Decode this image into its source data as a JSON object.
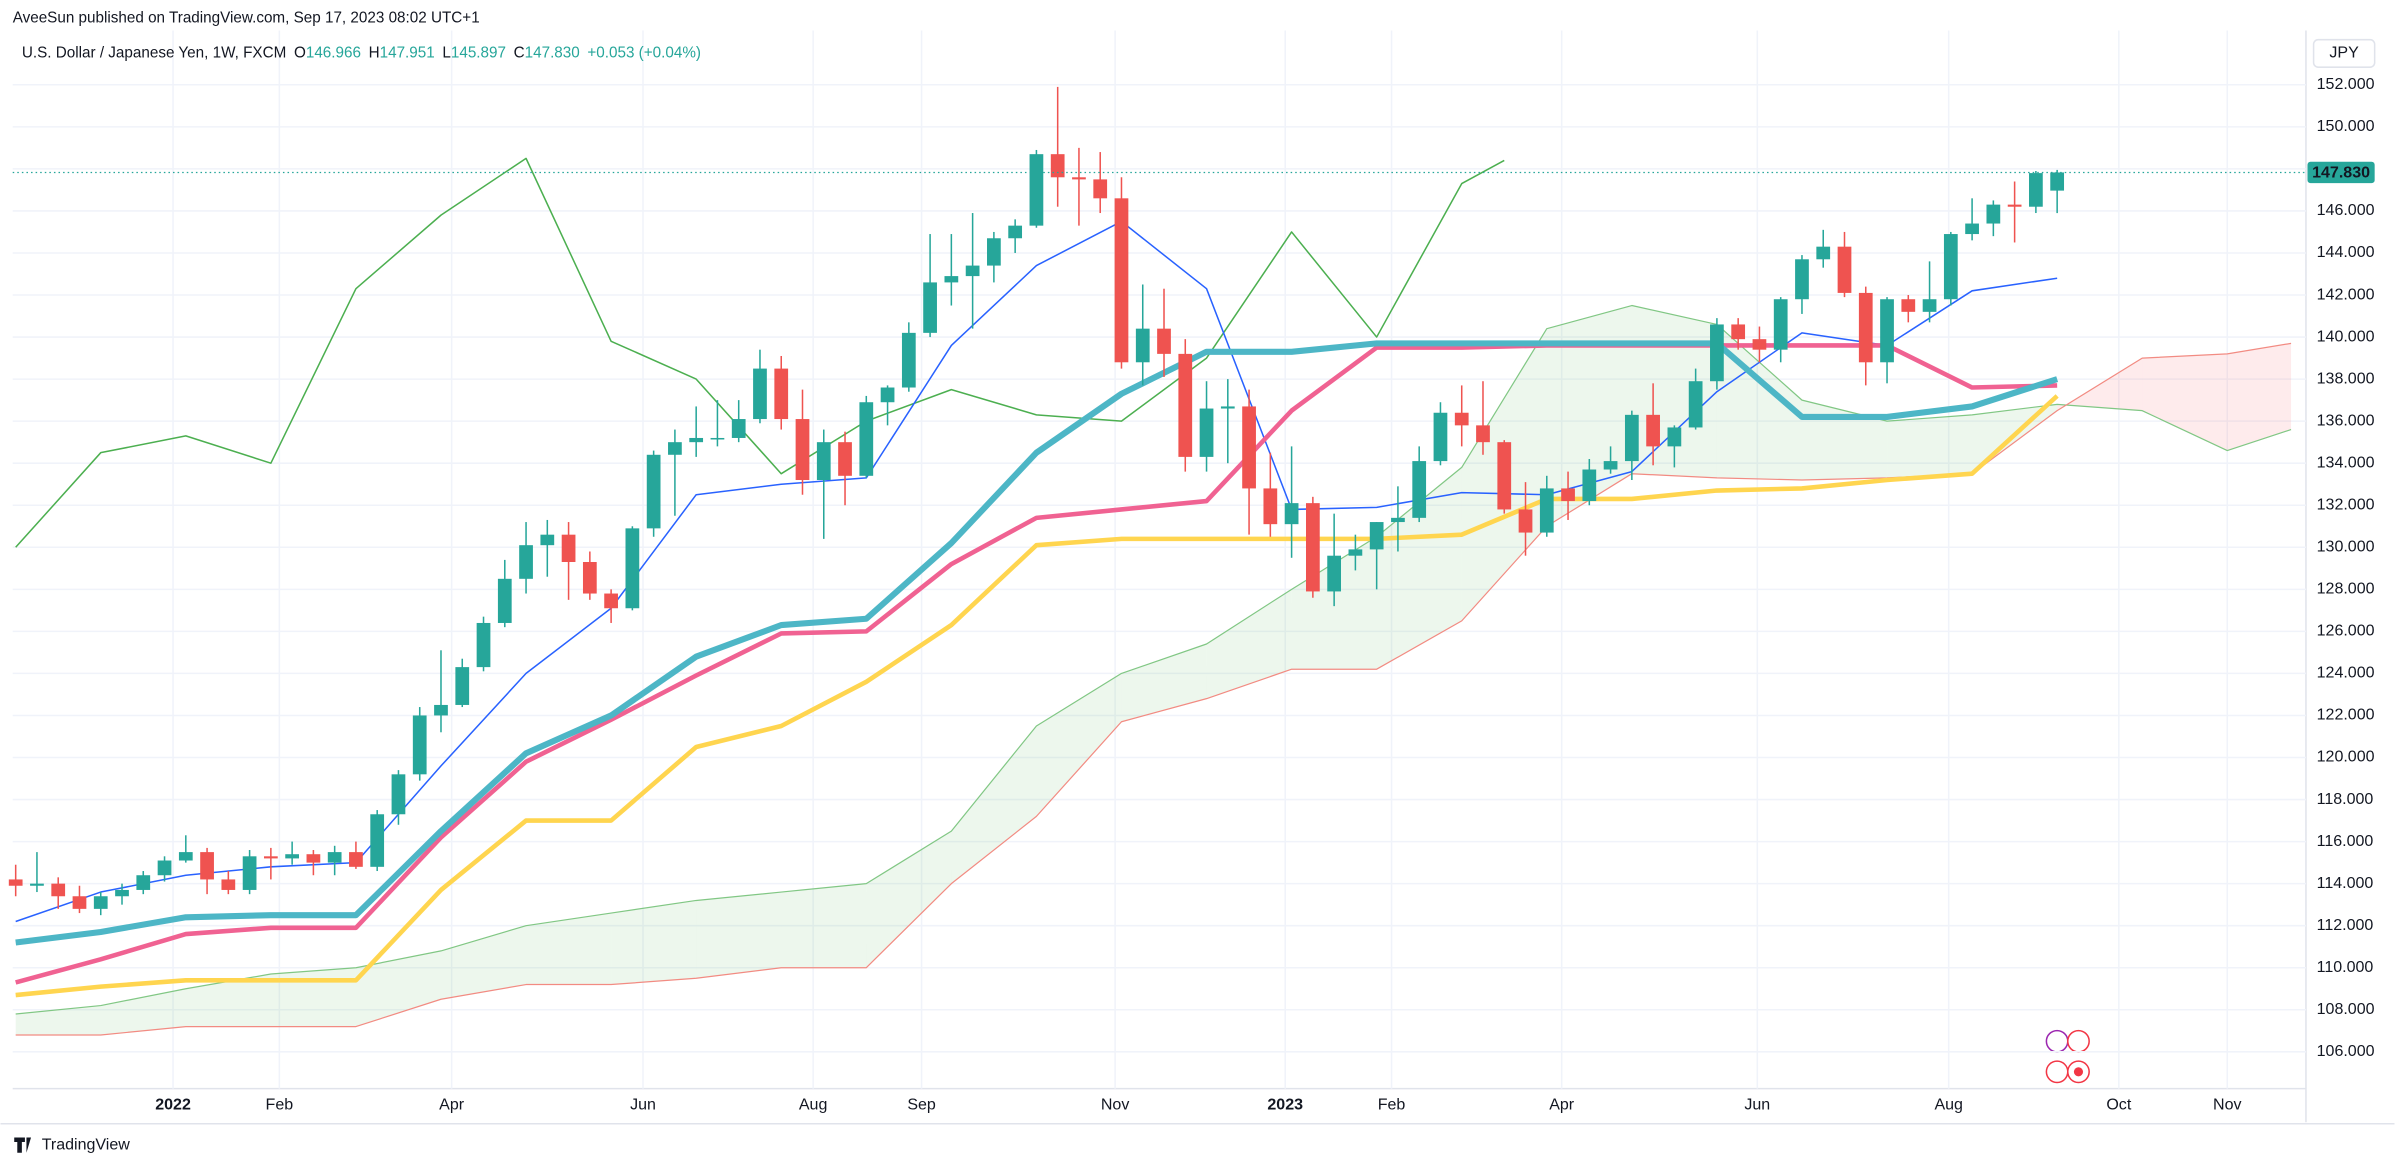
{
  "header": {
    "byline": "AveeSun published on TradingView.com, Sep 17, 2023 08:02 UTC+1",
    "symbol": "U.S. Dollar / Japanese Yen, 1W, FXCM",
    "ohlc": [
      {
        "label": "O",
        "value": "146.966"
      },
      {
        "label": "H",
        "value": "147.951"
      },
      {
        "label": "L",
        "value": "145.897"
      },
      {
        "label": "C",
        "value": "147.830"
      }
    ],
    "change": "+0.053 (+0.04%)",
    "currency": "JPY"
  },
  "footer": {
    "brand": "TradingView"
  },
  "chart_data": {
    "type": "candlestick",
    "xlim": [
      -0.14,
      107.7
    ],
    "xticks": [
      {
        "value": 7.4,
        "label": "2022"
      },
      {
        "value": 12.4,
        "label": "Feb"
      },
      {
        "value": 20.5,
        "label": "Apr"
      },
      {
        "value": 29.5,
        "label": "Jun"
      },
      {
        "value": 37.5,
        "label": "Aug"
      },
      {
        "value": 42.6,
        "label": "Sep"
      },
      {
        "value": 51.7,
        "label": "Nov"
      },
      {
        "value": 59.7,
        "label": "2023"
      },
      {
        "value": 64.7,
        "label": "Feb"
      },
      {
        "value": 72.7,
        "label": "Apr"
      },
      {
        "value": 81.9,
        "label": "Jun"
      },
      {
        "value": 90.9,
        "label": "Aug"
      },
      {
        "value": 98.9,
        "label": "Oct"
      },
      {
        "value": 104,
        "label": "Nov"
      }
    ],
    "ylim": [
      104.25,
      154.0
    ],
    "yticks": [
      {
        "value": 106,
        "label": "106.000"
      },
      {
        "value": 108,
        "label": "108.000"
      },
      {
        "value": 110,
        "label": "110.000"
      },
      {
        "value": 112,
        "label": "112.000"
      },
      {
        "value": 114,
        "label": "114.000"
      },
      {
        "value": 116,
        "label": "116.000"
      },
      {
        "value": 118,
        "label": "118.000"
      },
      {
        "value": 120,
        "label": "120.000"
      },
      {
        "value": 122,
        "label": "122.000"
      },
      {
        "value": 124,
        "label": "124.000"
      },
      {
        "value": 126,
        "label": "126.000"
      },
      {
        "value": 128,
        "label": "128.000"
      },
      {
        "value": 130,
        "label": "130.000"
      },
      {
        "value": 132,
        "label": "132.000"
      },
      {
        "value": 134,
        "label": "134.000"
      },
      {
        "value": 136,
        "label": "136.000"
      },
      {
        "value": 138,
        "label": "138.000"
      },
      {
        "value": 140,
        "label": "140.000"
      },
      {
        "value": 142,
        "label": "142.000"
      },
      {
        "value": 144,
        "label": "144.000"
      },
      {
        "value": 146,
        "label": "146.000"
      },
      {
        "value": 148,
        "label": "148.000"
      },
      {
        "value": 150,
        "label": "150.000"
      },
      {
        "value": 152,
        "label": "152.000"
      }
    ],
    "grid": true,
    "up_color": "#26a69a",
    "down_color": "#ef5350",
    "open": [
      114.2,
      113.9,
      114.0,
      113.4,
      112.8,
      113.4,
      113.7,
      114.4,
      115.1,
      115.5,
      114.2,
      113.7,
      115.3,
      115.2,
      115.4,
      115.0,
      115.5,
      114.8,
      117.3,
      119.2,
      122.0,
      122.5,
      124.3,
      126.4,
      128.5,
      130.1,
      130.6,
      129.3,
      127.8,
      127.1,
      130.9,
      134.4,
      135.0,
      135.2,
      135.2,
      136.1,
      138.5,
      136.1,
      133.2,
      135.0,
      133.4,
      136.9,
      137.6,
      140.2,
      142.6,
      142.9,
      143.4,
      144.7,
      145.3,
      148.7,
      147.6,
      147.5,
      146.6,
      138.8,
      140.4,
      139.2,
      134.3,
      136.6,
      136.7,
      132.8,
      131.1,
      132.1,
      127.9,
      129.6,
      129.9,
      131.2,
      131.4,
      134.1,
      136.4,
      135.8,
      135.0,
      131.8,
      130.7,
      132.8,
      132.2,
      133.7,
      134.1,
      136.3,
      134.8,
      135.7,
      137.9,
      140.6,
      139.9,
      139.4,
      141.8,
      143.7,
      144.3,
      142.1,
      138.8,
      141.8,
      141.2,
      141.8,
      144.9,
      145.4,
      146.3,
      146.2,
      146.966
    ],
    "high": [
      114.9,
      115.5,
      114.3,
      113.9,
      113.6,
      114.0,
      114.6,
      115.3,
      116.3,
      115.7,
      114.6,
      115.6,
      115.7,
      116.0,
      115.6,
      115.8,
      116.0,
      117.5,
      119.4,
      122.4,
      125.1,
      124.7,
      126.7,
      129.4,
      131.2,
      131.3,
      131.2,
      129.8,
      128.0,
      131.0,
      134.6,
      135.6,
      136.7,
      137.0,
      137.0,
      139.4,
      139.1,
      137.5,
      135.6,
      135.5,
      137.2,
      137.7,
      140.7,
      144.9,
      144.9,
      145.9,
      145.0,
      145.6,
      148.9,
      151.9,
      149.0,
      148.8,
      147.6,
      142.5,
      142.3,
      139.9,
      137.9,
      138.0,
      137.5,
      134.5,
      134.8,
      132.4,
      131.6,
      130.6,
      131.2,
      132.9,
      134.8,
      136.9,
      137.7,
      137.9,
      135.1,
      133.1,
      133.4,
      133.6,
      134.2,
      134.8,
      136.5,
      137.8,
      135.8,
      138.5,
      140.9,
      140.9,
      140.5,
      141.9,
      143.9,
      145.1,
      145.0,
      142.4,
      141.9,
      142.0,
      143.6,
      145.0,
      146.6,
      146.5,
      147.4,
      147.9,
      147.951
    ],
    "low": [
      113.4,
      113.6,
      112.8,
      112.6,
      112.5,
      113.0,
      113.5,
      114.1,
      115.0,
      113.5,
      113.5,
      113.5,
      114.2,
      114.9,
      114.4,
      114.4,
      114.7,
      114.6,
      116.8,
      118.9,
      121.2,
      122.4,
      124.1,
      126.2,
      127.8,
      128.6,
      127.5,
      127.5,
      126.4,
      127.0,
      130.5,
      131.5,
      134.3,
      134.8,
      135.0,
      135.9,
      135.6,
      132.5,
      130.4,
      132.0,
      133.3,
      135.8,
      137.4,
      140.0,
      141.5,
      140.4,
      142.6,
      144.0,
      145.2,
      146.2,
      145.3,
      145.9,
      138.5,
      137.7,
      138.1,
      133.6,
      133.6,
      134.0,
      130.6,
      130.5,
      129.5,
      127.6,
      127.2,
      128.9,
      128.0,
      129.8,
      131.2,
      133.9,
      134.8,
      134.4,
      131.6,
      129.6,
      130.5,
      131.3,
      132.0,
      133.5,
      133.2,
      133.9,
      133.8,
      135.6,
      137.5,
      139.4,
      138.8,
      138.8,
      141.1,
      143.3,
      141.9,
      137.7,
      137.8,
      140.7,
      140.7,
      141.5,
      144.6,
      144.8,
      144.5,
      145.9,
      145.897
    ],
    "close": [
      113.9,
      114.0,
      113.4,
      112.8,
      113.4,
      113.7,
      114.4,
      115.1,
      115.5,
      114.2,
      113.7,
      115.3,
      115.2,
      115.4,
      115.0,
      115.5,
      114.8,
      117.3,
      119.2,
      122.0,
      122.5,
      124.3,
      126.4,
      128.5,
      130.1,
      130.6,
      129.3,
      127.8,
      127.1,
      130.9,
      134.4,
      135.0,
      135.2,
      135.2,
      136.1,
      138.5,
      136.1,
      133.2,
      135.0,
      133.4,
      136.9,
      137.6,
      140.2,
      142.6,
      142.9,
      143.4,
      144.7,
      145.3,
      148.7,
      147.6,
      147.5,
      146.6,
      138.8,
      140.4,
      139.2,
      134.3,
      136.6,
      136.7,
      132.8,
      131.1,
      132.1,
      127.9,
      129.6,
      129.9,
      131.2,
      131.4,
      134.1,
      136.4,
      135.8,
      135.0,
      131.8,
      130.7,
      132.8,
      132.2,
      133.7,
      134.1,
      136.3,
      134.8,
      135.7,
      137.9,
      140.6,
      139.9,
      139.4,
      141.8,
      143.7,
      144.3,
      142.1,
      138.8,
      141.8,
      141.2,
      141.8,
      144.9,
      145.4,
      146.3,
      146.2,
      147.8,
      147.83
    ],
    "price_label": {
      "value": 147.83,
      "label": "147.830"
    },
    "cloud": {
      "x": [
        0,
        4,
        8,
        12,
        16,
        20,
        24,
        28,
        32,
        36,
        40,
        44,
        48,
        52,
        56,
        60,
        64,
        68,
        72,
        76,
        80,
        84,
        88,
        92,
        96,
        100,
        104,
        107
      ],
      "span_a": [
        107.8,
        108.2,
        109.0,
        109.7,
        110.0,
        110.8,
        112.0,
        112.6,
        113.2,
        113.6,
        114.0,
        116.5,
        121.5,
        124.0,
        125.4,
        128.0,
        130.5,
        133.8,
        140.4,
        141.5,
        140.6,
        137.0,
        136.0,
        136.3,
        136.8,
        136.5,
        134.6,
        135.6
      ],
      "span_b": [
        106.8,
        106.8,
        107.2,
        107.2,
        107.2,
        108.5,
        109.2,
        109.2,
        109.5,
        110.0,
        110.0,
        114.0,
        117.2,
        121.7,
        122.8,
        124.2,
        124.2,
        126.5,
        131.0,
        133.5,
        133.3,
        133.2,
        133.3,
        133.5,
        136.5,
        139.0,
        139.2,
        139.7
      ],
      "color_a": "#81c784",
      "color_b": "#f28b82",
      "fill_a": "rgba(76,175,80,0.10)",
      "fill_b": "rgba(242,54,69,0.10)"
    },
    "lines": [
      {
        "color": "#4caf50",
        "width": 1,
        "x": [
          0,
          4,
          8,
          12,
          16,
          20,
          24,
          28,
          32,
          36,
          40,
          44,
          48,
          52,
          56,
          60,
          64,
          68,
          70
        ],
        "values": [
          130,
          134.5,
          135.3,
          134,
          142.3,
          145.8,
          148.5,
          139.8,
          138,
          133.5,
          136,
          137.5,
          136.3,
          136,
          139,
          145,
          140,
          147.3,
          148.4
        ]
      },
      {
        "color": "#2962ff",
        "width": 1,
        "x": [
          0,
          4,
          8,
          12,
          16,
          20,
          24,
          28,
          32,
          36,
          40,
          44,
          48,
          52,
          56,
          60,
          64,
          68,
          72,
          76,
          80,
          84,
          88,
          92,
          96
        ],
        "values": [
          112.2,
          113.6,
          114.4,
          114.8,
          115.0,
          119.6,
          124.0,
          127.1,
          132.5,
          133.0,
          133.3,
          139.6,
          143.4,
          145.5,
          142.3,
          131.8,
          131.9,
          132.6,
          132.5,
          133.6,
          137.4,
          140.2,
          139.6,
          142.2,
          142.8
        ]
      },
      {
        "color": "#ffd54f",
        "width": 3,
        "x": [
          0,
          4,
          8,
          12,
          16,
          20,
          24,
          28,
          32,
          36,
          40,
          44,
          48,
          52,
          56,
          60,
          64,
          68,
          72,
          76,
          80,
          84,
          88,
          92,
          96
        ],
        "values": [
          108.7,
          109.1,
          109.4,
          109.4,
          109.4,
          113.7,
          117.0,
          117.0,
          120.5,
          121.5,
          123.6,
          126.3,
          130.1,
          130.4,
          130.4,
          130.4,
          130.4,
          130.6,
          132.3,
          132.3,
          132.7,
          132.8,
          133.2,
          133.5,
          137.2
        ]
      },
      {
        "color": "#f06292",
        "width": 3,
        "x": [
          0,
          4,
          8,
          12,
          16,
          20,
          24,
          28,
          32,
          36,
          40,
          44,
          48,
          52,
          56,
          60,
          64,
          68,
          72,
          76,
          80,
          84,
          88,
          92,
          96
        ],
        "values": [
          109.3,
          110.4,
          111.6,
          111.9,
          111.9,
          116.2,
          119.8,
          121.8,
          123.9,
          125.9,
          126.0,
          129.2,
          131.4,
          131.8,
          132.2,
          136.5,
          139.5,
          139.5,
          139.6,
          139.6,
          139.6,
          139.6,
          139.6,
          137.6,
          137.7
        ]
      },
      {
        "color": "#4db6c6",
        "width": 4,
        "x": [
          0,
          4,
          8,
          12,
          16,
          20,
          24,
          28,
          32,
          36,
          40,
          44,
          48,
          52,
          56,
          60,
          64,
          68,
          72,
          76,
          80,
          84,
          88,
          92,
          96
        ],
        "values": [
          111.2,
          111.7,
          112.4,
          112.5,
          112.5,
          116.5,
          120.2,
          122.0,
          124.8,
          126.3,
          126.6,
          130.2,
          134.5,
          137.3,
          139.3,
          139.3,
          139.7,
          139.7,
          139.7,
          139.7,
          139.7,
          136.2,
          136.2,
          136.7,
          138.0
        ]
      }
    ]
  }
}
